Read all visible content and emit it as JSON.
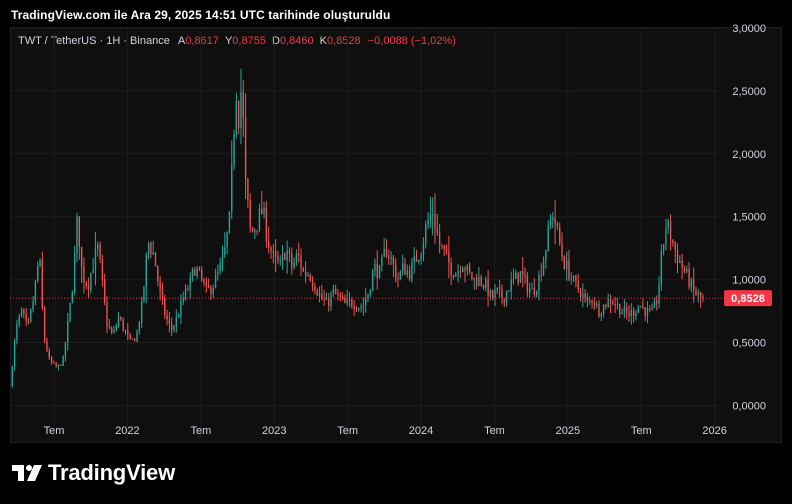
{
  "caption": "TradingView.com ile Ara 29, 2025 14:51 UTC tarihinde oluşturuldu",
  "legend": {
    "symbol": "TWT / TetherUS · 1H · Binance",
    "open_label": "A",
    "open_value": "0,8617",
    "high_label": "Y",
    "high_value": "0,8755",
    "low_label": "D",
    "low_value": "0,8460",
    "close_label": "K",
    "close_value": "0,8528",
    "change": "−0,0088 (−1,02%)"
  },
  "brand": {
    "name": "TradingView"
  },
  "colors": {
    "up": "#26a69a",
    "down": "#ef5350",
    "price_label_bg": "#f23645",
    "axis_text": "#d1d4dc",
    "grid": "#1c1c1c"
  },
  "chart_data": {
    "type": "candlestick",
    "ylim": [
      -0.1,
      3.0
    ],
    "y_ticks": [
      "3,0000",
      "2,5000",
      "2,0000",
      "1,5000",
      "1,0000",
      "0,5000",
      "0,0000"
    ],
    "y_tick_values": [
      3.0,
      2.5,
      2.0,
      1.5,
      1.0,
      0.5,
      0.0
    ],
    "x_range": [
      2021.2,
      2026.05
    ],
    "x_ticks": [
      {
        "label": "Tem",
        "x": 2021.5
      },
      {
        "label": "2022",
        "x": 2022.0
      },
      {
        "label": "Tem",
        "x": 2022.5
      },
      {
        "label": "2023",
        "x": 2023.0
      },
      {
        "label": "Tem",
        "x": 2023.5
      },
      {
        "label": "2024",
        "x": 2024.0
      },
      {
        "label": "Tem",
        "x": 2024.5
      },
      {
        "label": "2025",
        "x": 2025.0
      },
      {
        "label": "Tem",
        "x": 2025.5
      },
      {
        "label": "2026",
        "x": 2026.0
      }
    ],
    "last_price": 0.8528,
    "last_price_label": "0,8528",
    "price_points": [
      [
        2021.2,
        0.15
      ],
      [
        2021.24,
        0.6
      ],
      [
        2021.28,
        0.75
      ],
      [
        2021.32,
        0.6
      ],
      [
        2021.36,
        0.85
      ],
      [
        2021.4,
        1.2
      ],
      [
        2021.43,
        0.55
      ],
      [
        2021.47,
        0.35
      ],
      [
        2021.52,
        0.3
      ],
      [
        2021.56,
        0.35
      ],
      [
        2021.6,
        0.7
      ],
      [
        2021.63,
        1.0
      ],
      [
        2021.66,
        1.5
      ],
      [
        2021.69,
        1.05
      ],
      [
        2021.73,
        0.95
      ],
      [
        2021.77,
        1.15
      ],
      [
        2021.8,
        1.25
      ],
      [
        2021.83,
        0.95
      ],
      [
        2021.86,
        0.65
      ],
      [
        2021.9,
        0.55
      ],
      [
        2021.94,
        0.7
      ],
      [
        2021.98,
        0.6
      ],
      [
        2022.02,
        0.5
      ],
      [
        2022.06,
        0.55
      ],
      [
        2022.1,
        0.8
      ],
      [
        2022.14,
        1.3
      ],
      [
        2022.18,
        1.2
      ],
      [
        2022.22,
        0.9
      ],
      [
        2022.26,
        0.7
      ],
      [
        2022.3,
        0.6
      ],
      [
        2022.34,
        0.7
      ],
      [
        2022.38,
        0.85
      ],
      [
        2022.42,
        0.95
      ],
      [
        2022.46,
        1.1
      ],
      [
        2022.5,
        1.0
      ],
      [
        2022.54,
        0.9
      ],
      [
        2022.58,
        0.95
      ],
      [
        2022.62,
        1.05
      ],
      [
        2022.66,
        1.2
      ],
      [
        2022.7,
        1.5
      ],
      [
        2022.72,
        2.1
      ],
      [
        2022.74,
        2.55
      ],
      [
        2022.76,
        2.3
      ],
      [
        2022.78,
        2.6
      ],
      [
        2022.8,
        1.8
      ],
      [
        2022.84,
        1.35
      ],
      [
        2022.88,
        1.45
      ],
      [
        2022.92,
        1.55
      ],
      [
        2022.96,
        1.3
      ],
      [
        2023.0,
        1.15
      ],
      [
        2023.04,
        1.1
      ],
      [
        2023.08,
        1.25
      ],
      [
        2023.12,
        1.1
      ],
      [
        2023.16,
        1.2
      ],
      [
        2023.2,
        1.05
      ],
      [
        2023.24,
        1.05
      ],
      [
        2023.28,
        0.95
      ],
      [
        2023.32,
        0.85
      ],
      [
        2023.36,
        0.8
      ],
      [
        2023.4,
        0.9
      ],
      [
        2023.44,
        0.85
      ],
      [
        2023.48,
        0.8
      ],
      [
        2023.52,
        0.82
      ],
      [
        2023.56,
        0.8
      ],
      [
        2023.6,
        0.78
      ],
      [
        2023.64,
        0.9
      ],
      [
        2023.68,
        1.1
      ],
      [
        2023.72,
        1.05
      ],
      [
        2023.76,
        1.25
      ],
      [
        2023.8,
        1.15
      ],
      [
        2023.84,
        1.0
      ],
      [
        2023.88,
        1.1
      ],
      [
        2023.92,
        1.05
      ],
      [
        2023.96,
        1.15
      ],
      [
        2024.0,
        1.25
      ],
      [
        2024.04,
        1.45
      ],
      [
        2024.08,
        1.55
      ],
      [
        2024.12,
        1.3
      ],
      [
        2024.16,
        1.2
      ],
      [
        2024.2,
        1.1
      ],
      [
        2024.24,
        1.05
      ],
      [
        2024.28,
        1.15
      ],
      [
        2024.32,
        1.05
      ],
      [
        2024.36,
        1.0
      ],
      [
        2024.4,
        1.0
      ],
      [
        2024.44,
        0.95
      ],
      [
        2024.48,
        0.85
      ],
      [
        2024.52,
        0.9
      ],
      [
        2024.56,
        0.85
      ],
      [
        2024.6,
        0.95
      ],
      [
        2024.64,
        1.0
      ],
      [
        2024.68,
        1.05
      ],
      [
        2024.72,
        0.95
      ],
      [
        2024.76,
        0.9
      ],
      [
        2024.8,
        1.0
      ],
      [
        2024.84,
        1.2
      ],
      [
        2024.88,
        1.45
      ],
      [
        2024.9,
        1.55
      ],
      [
        2024.93,
        1.35
      ],
      [
        2024.97,
        1.15
      ],
      [
        2025.01,
        1.05
      ],
      [
        2025.05,
        0.95
      ],
      [
        2025.09,
        0.9
      ],
      [
        2025.13,
        0.8
      ],
      [
        2025.17,
        0.85
      ],
      [
        2025.21,
        0.75
      ],
      [
        2025.25,
        0.8
      ],
      [
        2025.29,
        0.85
      ],
      [
        2025.33,
        0.8
      ],
      [
        2025.37,
        0.75
      ],
      [
        2025.41,
        0.72
      ],
      [
        2025.45,
        0.75
      ],
      [
        2025.49,
        0.8
      ],
      [
        2025.53,
        0.75
      ],
      [
        2025.57,
        0.72
      ],
      [
        2025.61,
        0.85
      ],
      [
        2025.64,
        1.2
      ],
      [
        2025.67,
        1.45
      ],
      [
        2025.7,
        1.35
      ],
      [
        2025.74,
        1.2
      ],
      [
        2025.78,
        1.1
      ],
      [
        2025.82,
        1.0
      ],
      [
        2025.86,
        0.9
      ],
      [
        2025.9,
        0.86
      ],
      [
        2025.92,
        0.8528
      ]
    ]
  }
}
